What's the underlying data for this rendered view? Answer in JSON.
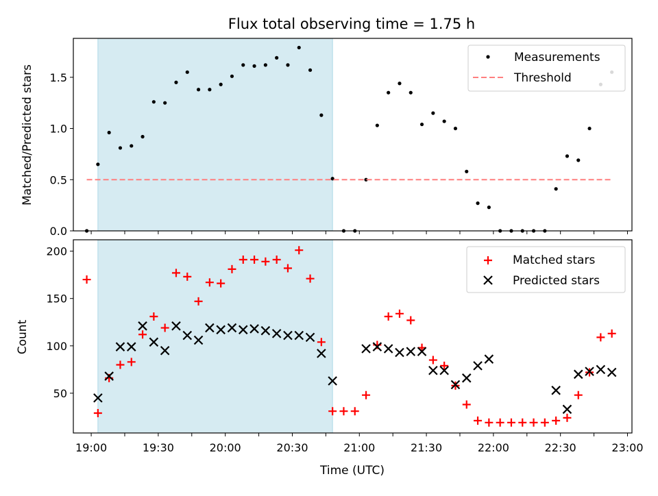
{
  "title": "Flux total observing time = 1.75 h",
  "chart_data": [
    {
      "type": "scatter",
      "ylabel": "Matched/Predicted stars",
      "ylim": [
        0,
        1.88
      ],
      "yticks": [
        0.0,
        0.5,
        1.0,
        1.5
      ],
      "ytick_labels": [
        "0.0",
        "0.5",
        "1.0",
        "1.5"
      ],
      "xlim": [
        "18:52",
        "23:02"
      ],
      "xticks": [
        "19:00",
        "19:15",
        "19:30",
        "19:45",
        "20:00",
        "20:15",
        "20:30",
        "20:45",
        "21:00",
        "21:15",
        "21:30",
        "21:45",
        "22:00",
        "22:15",
        "22:30",
        "22:45",
        "23:00"
      ],
      "shaded_region": {
        "x0": "19:03",
        "x1": "20:48",
        "color": "#add8e6"
      },
      "legend": {
        "placement": "top-right",
        "entries": [
          "Measurements",
          "Threshold"
        ]
      },
      "series": [
        {
          "name": "Measurements",
          "marker": "dot",
          "color": "#000000",
          "x": [
            "18:58",
            "19:03",
            "19:08",
            "19:13",
            "19:18",
            "19:23",
            "19:28",
            "19:33",
            "19:38",
            "19:43",
            "19:48",
            "19:53",
            "19:58",
            "20:03",
            "20:08",
            "20:13",
            "20:18",
            "20:23",
            "20:28",
            "20:33",
            "20:38",
            "20:43",
            "20:48",
            "20:53",
            "20:58",
            "21:03",
            "21:08",
            "21:13",
            "21:18",
            "21:23",
            "21:28",
            "21:33",
            "21:38",
            "21:43",
            "21:48",
            "21:53",
            "21:58",
            "22:03",
            "22:08",
            "22:13",
            "22:18",
            "22:23",
            "22:28",
            "22:33",
            "22:38",
            "22:43",
            "22:48",
            "22:53"
          ],
          "y": [
            0.0,
            0.65,
            0.96,
            0.81,
            0.83,
            0.92,
            1.26,
            1.25,
            1.45,
            1.55,
            1.38,
            1.38,
            1.43,
            1.51,
            1.62,
            1.61,
            1.62,
            1.69,
            1.62,
            1.79,
            1.57,
            1.13,
            0.51,
            0.0,
            0.0,
            0.5,
            1.03,
            1.35,
            1.44,
            1.35,
            1.04,
            1.15,
            1.07,
            1.0,
            0.58,
            0.27,
            0.23,
            0.0,
            0.0,
            0.0,
            0.0,
            0.0,
            0.41,
            0.73,
            0.69,
            1.0,
            1.43,
            1.55
          ]
        },
        {
          "name": "Threshold",
          "line": "dashed",
          "color": "#ff7f7f",
          "x": [
            "18:58",
            "22:53"
          ],
          "y": [
            0.5,
            0.5
          ]
        }
      ]
    },
    {
      "type": "scatter",
      "ylabel": "Count",
      "xlabel": "Time (UTC)",
      "ylim": [
        8,
        212
      ],
      "yticks": [
        50,
        100,
        150,
        200
      ],
      "ytick_labels": [
        "50",
        "100",
        "150",
        "200"
      ],
      "xlim": [
        "18:52",
        "23:02"
      ],
      "xticks": [
        "19:00",
        "19:15",
        "19:30",
        "19:45",
        "20:00",
        "20:15",
        "20:30",
        "20:45",
        "21:00",
        "21:15",
        "21:30",
        "21:45",
        "22:00",
        "22:15",
        "22:30",
        "22:45",
        "23:00"
      ],
      "xtick_labels": [
        "19:00",
        "",
        "19:30",
        "",
        "20:00",
        "",
        "20:30",
        "",
        "21:00",
        "",
        "21:30",
        "",
        "22:00",
        "",
        "22:30",
        "",
        "23:00"
      ],
      "shaded_region": {
        "x0": "19:03",
        "x1": "20:48",
        "color": "#add8e6"
      },
      "legend": {
        "placement": "top-right",
        "entries": [
          "Matched stars",
          "Predicted stars"
        ]
      },
      "series": [
        {
          "name": "Matched stars",
          "marker": "plus",
          "color": "#ff0000",
          "x": [
            "18:58",
            "19:03",
            "19:08",
            "19:13",
            "19:18",
            "19:23",
            "19:28",
            "19:33",
            "19:38",
            "19:43",
            "19:48",
            "19:53",
            "19:58",
            "20:03",
            "20:08",
            "20:13",
            "20:18",
            "20:23",
            "20:28",
            "20:33",
            "20:38",
            "20:43",
            "20:48",
            "20:53",
            "20:58",
            "21:03",
            "21:08",
            "21:13",
            "21:18",
            "21:23",
            "21:28",
            "21:33",
            "21:38",
            "21:43",
            "21:48",
            "21:53",
            "21:58",
            "22:03",
            "22:08",
            "22:13",
            "22:18",
            "22:23",
            "22:28",
            "22:33",
            "22:38",
            "22:43",
            "22:48",
            "22:53"
          ],
          "y": [
            170,
            29,
            66,
            80,
            83,
            112,
            131,
            119,
            177,
            173,
            147,
            167,
            166,
            181,
            191,
            191,
            189,
            191,
            182,
            201,
            171,
            104,
            31,
            31,
            31,
            48,
            101,
            131,
            134,
            127,
            98,
            85,
            79,
            58,
            38,
            21,
            19,
            19,
            19,
            19,
            19,
            19,
            21,
            24,
            48,
            72,
            109,
            113
          ]
        },
        {
          "name": "Predicted stars",
          "marker": "x",
          "color": "#000000",
          "x": [
            "19:03",
            "19:08",
            "19:13",
            "19:18",
            "19:23",
            "19:28",
            "19:33",
            "19:38",
            "19:43",
            "19:48",
            "19:53",
            "19:58",
            "20:03",
            "20:08",
            "20:13",
            "20:18",
            "20:23",
            "20:28",
            "20:33",
            "20:38",
            "20:43",
            "20:48",
            "21:03",
            "21:08",
            "21:13",
            "21:18",
            "21:23",
            "21:28",
            "21:33",
            "21:38",
            "21:43",
            "21:48",
            "21:53",
            "21:58",
            "22:28",
            "22:33",
            "22:38",
            "22:43",
            "22:48",
            "22:53"
          ],
          "y": [
            45,
            68,
            99,
            99,
            121,
            104,
            95,
            121,
            111,
            106,
            119,
            117,
            119,
            117,
            118,
            116,
            113,
            111,
            111,
            109,
            92,
            63,
            97,
            99,
            97,
            93,
            94,
            94,
            74,
            74,
            59,
            66,
            79,
            86,
            53,
            33,
            70,
            73,
            75,
            72
          ]
        }
      ]
    }
  ]
}
